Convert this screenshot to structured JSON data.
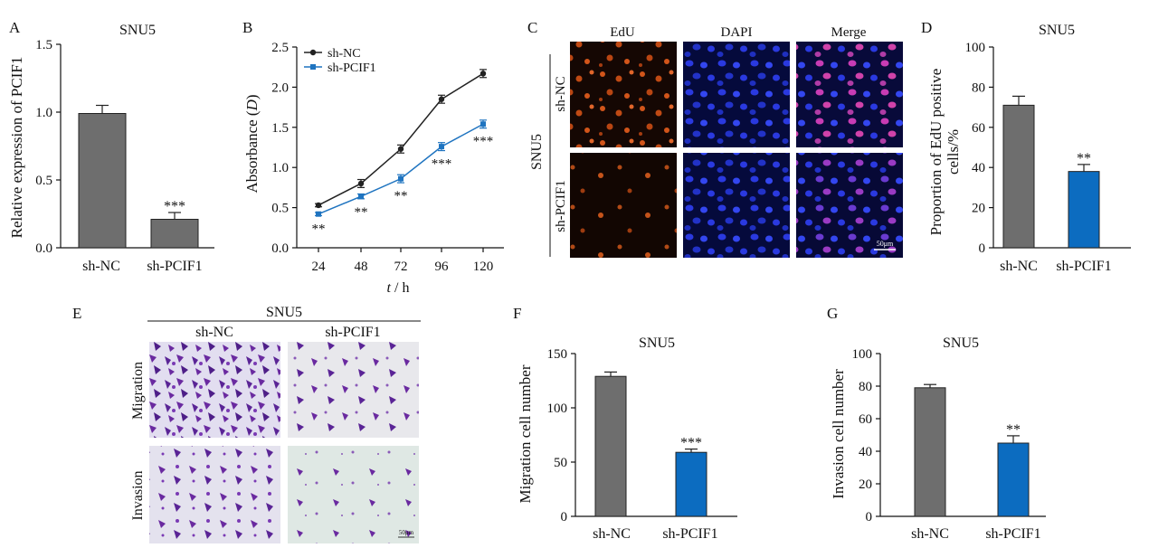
{
  "colors": {
    "nc_bar": "#6e6e6e",
    "pcif1_bar": "#0c6cc0",
    "nc_line": "#222222",
    "pcif1_line": "#1f74c0",
    "axis": "#111111",
    "edu_stain": "#d2551a",
    "dapi_stain": "#2a39e0",
    "merge_stain": "#c83cb4",
    "crystal_violet": "#6a2aa0"
  },
  "panel_letters": {
    "a": "A",
    "b": "B",
    "c": "C",
    "d": "D",
    "e": "E",
    "f": "F",
    "g": "G"
  },
  "micrographs": {
    "c_columns": [
      "EdU",
      "DAPI",
      "Merge"
    ],
    "c_rows": [
      "sh-NC",
      "sh-PCIF1"
    ],
    "c_group": "SNU5",
    "e_group": "SNU5",
    "e_columns": [
      "sh-NC",
      "sh-PCIF1"
    ],
    "e_rows": [
      "Migration",
      "Invasion"
    ],
    "scale_bar": "50μm"
  },
  "chart_data": [
    {
      "id": "A",
      "type": "bar",
      "title": "SNU5",
      "xlabel": "",
      "ylabel": "Relative expression of PCIF1",
      "categories": [
        "sh-NC",
        "sh-PCIF1"
      ],
      "values": [
        0.99,
        0.21
      ],
      "errors": [
        0.06,
        0.05
      ],
      "significance": [
        "",
        "***"
      ],
      "ylim": [
        0,
        1.5
      ],
      "yticks": [
        "0.0",
        "0.5",
        "1.0",
        "1.5"
      ]
    },
    {
      "id": "B",
      "type": "line",
      "title": "",
      "xlabel": "t / h",
      "ylabel": "Absorbance (D)",
      "x": [
        24,
        48,
        72,
        96,
        120
      ],
      "xticks": [
        "24",
        "48",
        "72",
        "96",
        "120"
      ],
      "ylim": [
        0,
        2.5
      ],
      "yticks": [
        "0.0",
        "0.5",
        "1.0",
        "1.5",
        "2.0",
        "2.5"
      ],
      "legend_position": "top-left",
      "series": [
        {
          "name": "sh-NC",
          "values": [
            0.53,
            0.8,
            1.23,
            1.85,
            2.17
          ],
          "errors": [
            0.02,
            0.05,
            0.05,
            0.05,
            0.05
          ]
        },
        {
          "name": "sh-PCIF1",
          "values": [
            0.42,
            0.64,
            0.86,
            1.26,
            1.54
          ],
          "errors": [
            0.02,
            0.03,
            0.05,
            0.05,
            0.05
          ]
        }
      ],
      "significance": [
        "**",
        "**",
        "**",
        "***",
        "***"
      ]
    },
    {
      "id": "D",
      "type": "bar",
      "title": "SNU5",
      "xlabel": "",
      "ylabel": "Proportion of EdU positive cells/%",
      "categories": [
        "sh-NC",
        "sh-PCIF1"
      ],
      "values": [
        71,
        38
      ],
      "errors": [
        4.5,
        3.5
      ],
      "significance": [
        "",
        "**"
      ],
      "ylim": [
        0,
        100
      ],
      "yticks": [
        "0",
        "20",
        "40",
        "60",
        "80",
        "100"
      ]
    },
    {
      "id": "F",
      "type": "bar",
      "title": "SNU5",
      "xlabel": "",
      "ylabel": "Migration cell number",
      "categories": [
        "sh-NC",
        "sh-PCIF1"
      ],
      "values": [
        129,
        59
      ],
      "errors": [
        4,
        3
      ],
      "significance": [
        "",
        "***"
      ],
      "ylim": [
        0,
        150
      ],
      "yticks": [
        "0",
        "50",
        "100",
        "150"
      ]
    },
    {
      "id": "G",
      "type": "bar",
      "title": "SNU5",
      "xlabel": "",
      "ylabel": "Invasion cell number",
      "categories": [
        "sh-NC",
        "sh-PCIF1"
      ],
      "values": [
        79,
        45
      ],
      "errors": [
        2,
        4.5
      ],
      "significance": [
        "",
        "**"
      ],
      "ylim": [
        0,
        100
      ],
      "yticks": [
        "0",
        "20",
        "40",
        "60",
        "80",
        "100"
      ]
    }
  ]
}
